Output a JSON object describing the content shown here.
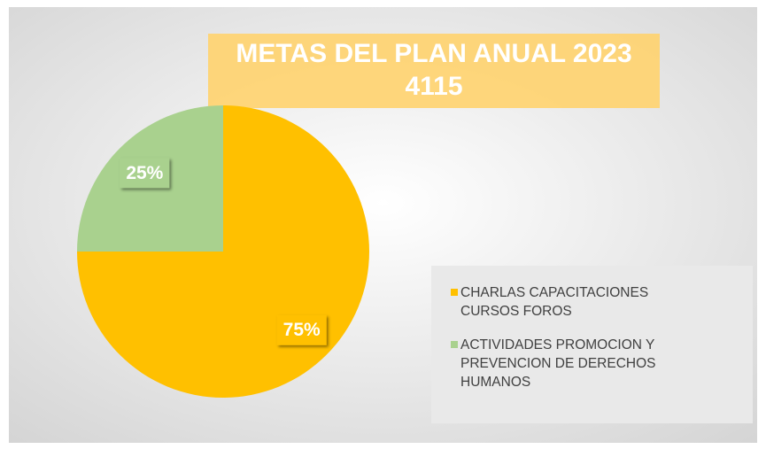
{
  "chart_data": {
    "type": "pie",
    "title": "METAS DEL PLAN ANUAL 2023",
    "subtitle": "4115",
    "categories": [
      "CHARLAS CAPACITACIONES CURSOS FOROS",
      "ACTIVIDADES PROMOCION Y PREVENCION DE DERECHOS HUMANOS"
    ],
    "values": [
      75,
      25
    ],
    "value_labels": [
      "75%",
      "25%"
    ],
    "colors": [
      "#ffc000",
      "#a9d18e"
    ],
    "legend": "right"
  }
}
